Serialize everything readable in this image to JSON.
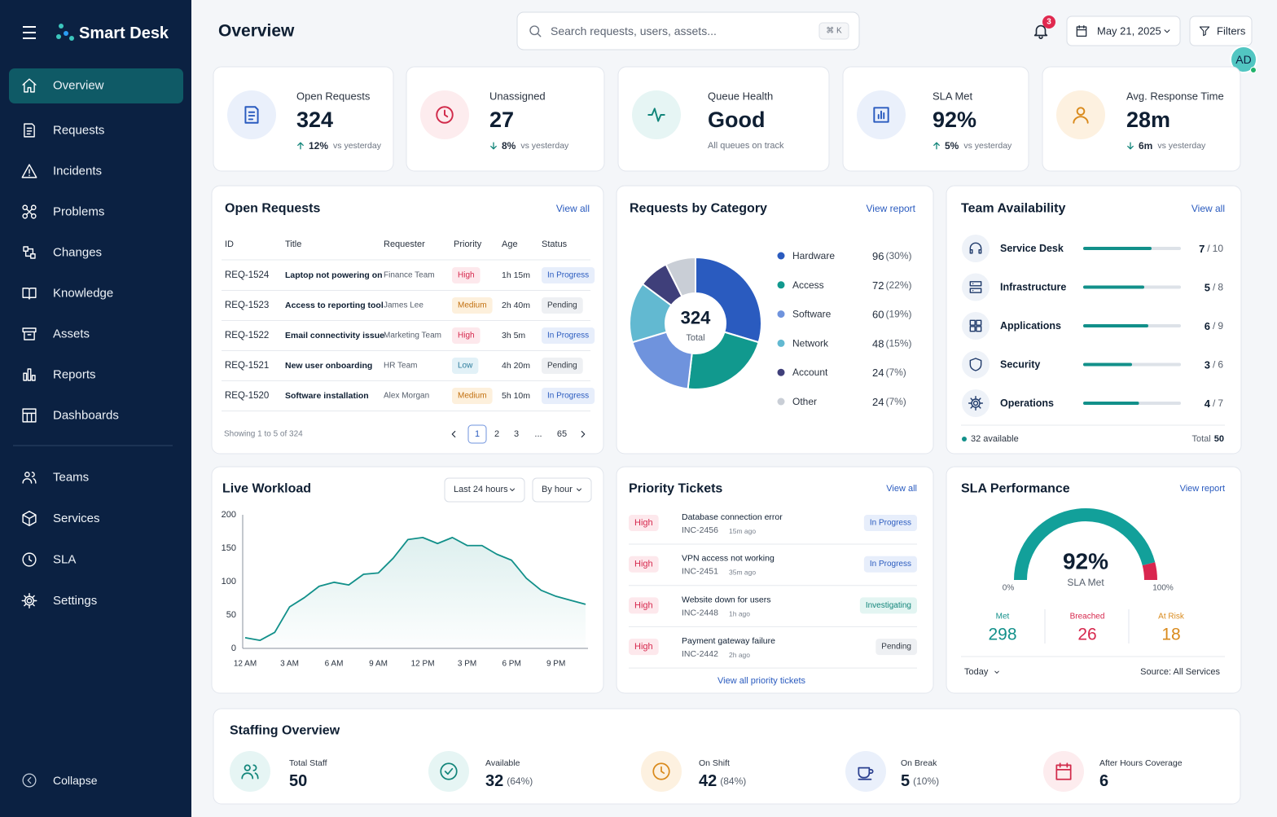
{
  "sidebar": {
    "brand": "Smart Desk",
    "nav": [
      "Overview",
      "Requests",
      "Incidents",
      "Problems",
      "Changes",
      "Knowledge",
      "Assets",
      "Reports",
      "Dashboards"
    ],
    "nav2": [
      "Teams",
      "Services",
      "SLA",
      "Settings"
    ],
    "collapse": "Collapse"
  },
  "header": {
    "title": "Overview",
    "search_placeholder": "Search requests, users, assets...",
    "search_shortcut": "⌘ K",
    "notifications": 3,
    "date": "May 21, 2025",
    "filters": "Filters",
    "avatar": "AD"
  },
  "kpis": [
    {
      "label": "Open Requests",
      "value": 324,
      "change": "12%",
      "direction": "up",
      "comparison": "vs yesterday"
    },
    {
      "label": "Unassigned",
      "value": 27,
      "change": "8%",
      "direction": "down",
      "comparison": "vs yesterday"
    },
    {
      "label": "Queue Health",
      "value": "Good",
      "subtitle": "All queues on track"
    },
    {
      "label": "SLA Met",
      "value": "92%",
      "change": "5%",
      "direction": "up",
      "comparison": "vs yesterday"
    },
    {
      "label": "Avg. Response Time",
      "value": "28m",
      "change": "6m",
      "direction": "down",
      "comparison": "vs yesterday"
    }
  ],
  "badge_colors": {
    "High": {
      "text": "#d6284d",
      "fill": "#fde8ec"
    },
    "Medium": {
      "text": "#c2700f",
      "fill": "#fdf0dc"
    },
    "Low": {
      "text": "#2c7c9c",
      "fill": "#e2f1f7"
    },
    "In Progress": {
      "text": "#2a5bbf",
      "fill": "#e7eefb"
    },
    "Pending": {
      "text": "#333a44",
      "fill": "#eef0f3"
    },
    "Investigating": {
      "text": "#12857a",
      "fill": "#e3f5f2"
    }
  },
  "open_requests": {
    "title": "Open Requests",
    "link": "View all",
    "columns": [
      "ID",
      "Title",
      "Requester",
      "Priority",
      "Age",
      "Status"
    ],
    "rows": [
      [
        "REQ-1524",
        "Laptop not powering on",
        "Finance Team",
        "High",
        "1h 15m",
        "In Progress"
      ],
      [
        "REQ-1523",
        "Access to reporting tool",
        "James Lee",
        "Medium",
        "2h 40m",
        "Pending"
      ],
      [
        "REQ-1522",
        "Email connectivity issue",
        "Marketing Team",
        "High",
        "3h 5m",
        "In Progress"
      ],
      [
        "REQ-1521",
        "New user onboarding",
        "HR Team",
        "Low",
        "4h 20m",
        "Pending"
      ],
      [
        "REQ-1520",
        "Software installation",
        "Alex Morgan",
        "Medium",
        "5h 10m",
        "In Progress"
      ]
    ],
    "footer": "Showing 1 to 5 of 324",
    "pages": [
      1,
      2,
      3,
      "...",
      65
    ]
  },
  "team_availability": {
    "title": "Team Availability",
    "link": "View all",
    "separator": "/",
    "teams": [
      {
        "name": "Service Desk",
        "available": 7,
        "capacity": 10
      },
      {
        "name": "Infrastructure",
        "available": 5,
        "capacity": 8
      },
      {
        "name": "Applications",
        "available": 6,
        "capacity": 9
      },
      {
        "name": "Security",
        "available": 3,
        "capacity": 6
      },
      {
        "name": "Operations",
        "available": 4,
        "capacity": 7
      }
    ],
    "available_label": "32 available",
    "total_label": "Total",
    "total": 50
  },
  "workload": {
    "title": "Live Workload",
    "range": "Last 24 hours",
    "interval": "By hour"
  },
  "priority_tickets": {
    "title": "Priority Tickets",
    "link": "View all",
    "tickets": [
      {
        "priority": "High",
        "title": "Database connection error",
        "id": "INC-2456",
        "age": "15m ago",
        "status": "In Progress"
      },
      {
        "priority": "High",
        "title": "VPN access not working",
        "id": "INC-2451",
        "age": "35m ago",
        "status": "In Progress"
      },
      {
        "priority": "High",
        "title": "Website down for users",
        "id": "INC-2448",
        "age": "1h ago",
        "status": "Investigating"
      },
      {
        "priority": "High",
        "title": "Payment gateway failure",
        "id": "INC-2442",
        "age": "2h ago",
        "status": "Pending"
      }
    ],
    "footer": "View all priority tickets"
  },
  "sla_performance": {
    "title": "SLA Performance",
    "link": "View report",
    "stats": [
      {
        "label": "Met",
        "value": 298,
        "color": "#12908a"
      },
      {
        "label": "Breached",
        "value": 26,
        "color": "#d6284d"
      },
      {
        "label": "At Risk",
        "value": 18,
        "color": "#d98a1c"
      }
    ],
    "period": "Today",
    "source": "Source: All Services"
  },
  "staffing": {
    "title": "Staffing Overview",
    "items": [
      {
        "label": "Total Staff",
        "value": 50
      },
      {
        "label": "Available",
        "value": 32,
        "share": "(64%)"
      },
      {
        "label": "On Shift",
        "value": 42,
        "share": "(84%)"
      },
      {
        "label": "On Break",
        "value": 5,
        "share": "(10%)"
      },
      {
        "label": "After Hours Coverage",
        "value": 6
      }
    ]
  },
  "chart_data": [
    {
      "type": "pie",
      "title": "Requests by Category",
      "link": "View report",
      "total": 324,
      "total_label": "Total",
      "categories": [
        "Hardware",
        "Access",
        "Software",
        "Network",
        "Account",
        "Other"
      ],
      "values": [
        96,
        72,
        60,
        48,
        24,
        24
      ],
      "share_labels": [
        "(30%)",
        "(22%)",
        "(19%)",
        "(15%)",
        "(7%)",
        "(7%)"
      ],
      "colors": [
        "#2a5bbf",
        "#11998e",
        "#6f93dd",
        "#62b9d1",
        "#3f3f7a",
        "#c9ced6"
      ]
    },
    {
      "type": "line",
      "color": "#12908a",
      "x": [
        0,
        1,
        2,
        3,
        4,
        5,
        6,
        7,
        8,
        9,
        10,
        11,
        12,
        13,
        14,
        15,
        16,
        17,
        18,
        19,
        20,
        21,
        22,
        23
      ],
      "values": [
        16,
        12,
        24,
        62,
        76,
        93,
        99,
        95,
        111,
        113,
        135,
        163,
        166,
        157,
        166,
        154,
        154,
        141,
        132,
        105,
        87,
        78,
        72,
        66
      ],
      "xlim": [
        0,
        23
      ],
      "xticks": [
        {
          "value": 0,
          "label": "12 AM"
        },
        {
          "value": 3,
          "label": "3 AM"
        },
        {
          "value": 6,
          "label": "6 AM"
        },
        {
          "value": 9,
          "label": "9 AM"
        },
        {
          "value": 12,
          "label": "12 PM"
        },
        {
          "value": 15,
          "label": "3 PM"
        },
        {
          "value": 18,
          "label": "6 PM"
        },
        {
          "value": 21,
          "label": "9 PM"
        }
      ],
      "ylim": [
        0,
        200
      ],
      "yticks": [
        0,
        50,
        100,
        150,
        200
      ],
      "grid": false
    },
    {
      "type": "gauge",
      "value": 92,
      "value_label": "92%",
      "label": "SLA Met",
      "color": "#12a09a",
      "track_color": "#d9264f",
      "ylim": [
        0,
        100
      ],
      "yticks": [
        {
          "value": 0,
          "label": "0%"
        },
        {
          "value": 100,
          "label": "100%"
        }
      ]
    }
  ]
}
